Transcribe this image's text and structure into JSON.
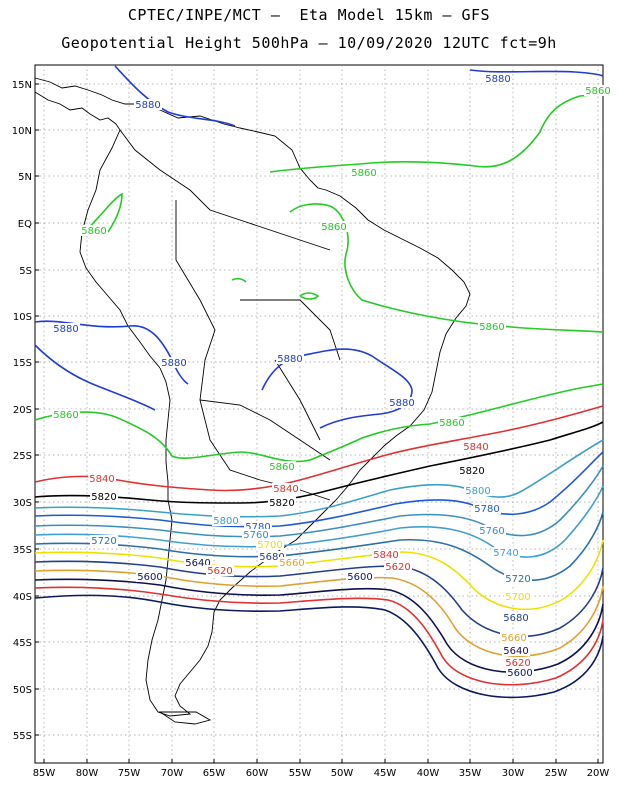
{
  "header": {
    "title_line1": "CPTEC/INPE/MCT –  Eta Model 15km – GFS",
    "title_line2": "Geopotential Height 500hPa – 10/09/2020 12UTC fct=9h"
  },
  "map": {
    "lat_labels": [
      "15N",
      "10N",
      "5N",
      "EQ",
      "5S",
      "10S",
      "15S",
      "20S",
      "25S",
      "30S",
      "35S",
      "40S",
      "45S",
      "50S",
      "55S"
    ],
    "lon_labels": [
      "85W",
      "80W",
      "75W",
      "70W",
      "65W",
      "60W",
      "55W",
      "50W",
      "45W",
      "40W",
      "35W",
      "30W",
      "25W",
      "20W"
    ],
    "contours": [
      {
        "value": "5880",
        "color": "#1e3cd8",
        "labels": [
          "5880",
          "5880",
          "5880",
          "5880",
          "5880",
          "5880"
        ]
      },
      {
        "value": "5860",
        "color": "#22cc22",
        "labels": [
          "5860",
          "5860",
          "5860",
          "5860",
          "5860",
          "5860",
          "5860",
          "5860"
        ]
      },
      {
        "value": "5840",
        "color": "#e03030",
        "labels": [
          "5840",
          "5840",
          "5840",
          "5840"
        ]
      },
      {
        "value": "5820",
        "color": "#000000",
        "labels": [
          "5820",
          "5820",
          "5820"
        ]
      },
      {
        "value": "5800",
        "color": "#3aa0c8",
        "labels": [
          "5800",
          "5800"
        ]
      },
      {
        "value": "5780",
        "color": "#1e5ad8",
        "labels": [
          "5780",
          "5780"
        ]
      },
      {
        "value": "5760",
        "color": "#3a8fc0",
        "labels": [
          "5760",
          "5760"
        ]
      },
      {
        "value": "5740",
        "color": "#3fa0d0",
        "labels": [
          "5740"
        ]
      },
      {
        "value": "5720",
        "color": "#2a70a8",
        "labels": [
          "5720",
          "5720"
        ]
      },
      {
        "value": "5700",
        "color": "#f0e000",
        "labels": [
          "5700",
          "5700"
        ]
      },
      {
        "value": "5680",
        "color": "#22408a",
        "labels": [
          "5680",
          "5680"
        ]
      },
      {
        "value": "5660",
        "color": "#e0a030",
        "labels": [
          "5660",
          "5660"
        ]
      },
      {
        "value": "5640",
        "color": "#101050",
        "labels": [
          "5640",
          "5640"
        ]
      },
      {
        "value": "5620",
        "color": "#e03030",
        "labels": [
          "5620",
          "5620",
          "5620"
        ]
      },
      {
        "value": "5600",
        "color": "#0a1a60",
        "labels": [
          "5600",
          "5600",
          "5600"
        ]
      }
    ]
  }
}
